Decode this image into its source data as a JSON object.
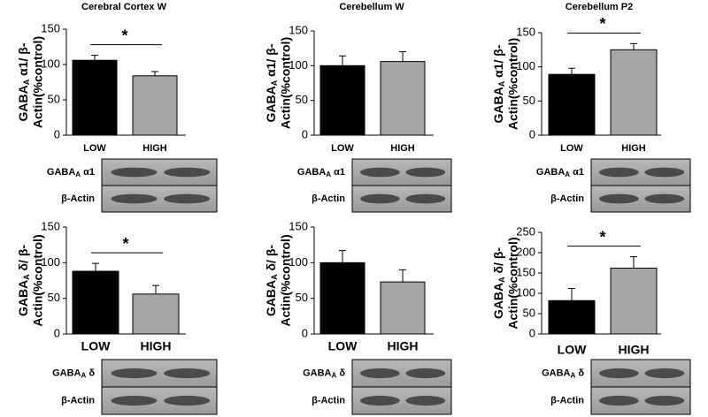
{
  "chart_data": [
    {
      "type": "bar",
      "title": "Cerebral Cortex W",
      "ylabel_parts": [
        "GABA",
        "A",
        " α1/ β-",
        "Actin(%control)"
      ],
      "categories": [
        "LOW",
        "HIGH"
      ],
      "values": [
        106,
        84
      ],
      "errors": [
        7,
        6
      ],
      "colors": [
        "#000000",
        "#a6a6a6"
      ],
      "ylim": [
        0,
        150
      ],
      "yticks": [
        0,
        50,
        100,
        150
      ],
      "significance": "*",
      "blots": [
        [
          "GABA",
          "A",
          " α1"
        ],
        [
          "β-Actin"
        ]
      ]
    },
    {
      "type": "bar",
      "title": "Cerebellum W",
      "ylabel_parts": [
        "GABA",
        "A",
        " α1/ β-",
        "Actin(%control)"
      ],
      "categories": [
        "LOW",
        "HIGH"
      ],
      "values": [
        100,
        106
      ],
      "errors": [
        14,
        14
      ],
      "colors": [
        "#000000",
        "#a6a6a6"
      ],
      "ylim": [
        0,
        150
      ],
      "yticks": [
        0,
        50,
        100,
        150
      ],
      "blots": [
        [
          "GABA",
          "A",
          " α1"
        ],
        [
          "β-Actin"
        ]
      ]
    },
    {
      "type": "bar",
      "title": "Cerebellum P2",
      "ylabel_parts": [
        "GABA",
        "A",
        " α1/ β-",
        "Actin(%control)"
      ],
      "categories": [
        "LOW",
        "HIGH"
      ],
      "values": [
        89,
        125
      ],
      "errors": [
        9,
        9
      ],
      "colors": [
        "#000000",
        "#a6a6a6"
      ],
      "ylim": [
        0,
        150
      ],
      "yticks": [
        0,
        50,
        100,
        150
      ],
      "significance": "*",
      "blots": [
        [
          "GABA",
          "A",
          " α1"
        ],
        [
          "β-Actin"
        ]
      ]
    },
    {
      "type": "bar",
      "ylabel_parts": [
        "GABA",
        "A",
        " δ/ β-",
        "Actin(%control)"
      ],
      "categories": [
        "LOW",
        "HIGH"
      ],
      "values": [
        88,
        56
      ],
      "errors": [
        11,
        12
      ],
      "colors": [
        "#000000",
        "#a6a6a6"
      ],
      "ylim": [
        0,
        150
      ],
      "yticks": [
        0,
        50,
        100,
        150
      ],
      "significance": "*",
      "blots": [
        [
          "GABA",
          "A",
          " δ"
        ],
        [
          "β-Actin"
        ]
      ]
    },
    {
      "type": "bar",
      "ylabel_parts": [
        "GABA",
        "A",
        " δ/ β-",
        "Actin(%control)"
      ],
      "categories": [
        "LOW",
        "HIGH"
      ],
      "values": [
        100,
        73
      ],
      "errors": [
        17,
        17
      ],
      "colors": [
        "#000000",
        "#a6a6a6"
      ],
      "ylim": [
        0,
        150
      ],
      "yticks": [
        0,
        50,
        100,
        150
      ],
      "blots": [
        [
          "GABA",
          "A",
          " δ"
        ],
        [
          "β-Actin"
        ]
      ]
    },
    {
      "type": "bar",
      "ylabel_parts": [
        "GABA",
        "A",
        " δ/ β-",
        "Actin(%control)"
      ],
      "categories": [
        "LOW",
        "HIGH"
      ],
      "values": [
        82,
        162
      ],
      "errors": [
        30,
        28
      ],
      "colors": [
        "#000000",
        "#a6a6a6"
      ],
      "ylim": [
        0,
        250
      ],
      "yticks": [
        0,
        50,
        100,
        150,
        200,
        250
      ],
      "significance": "*",
      "blots": [
        [
          "GABA",
          "A",
          " δ"
        ],
        [
          "β-Actin"
        ]
      ]
    }
  ]
}
